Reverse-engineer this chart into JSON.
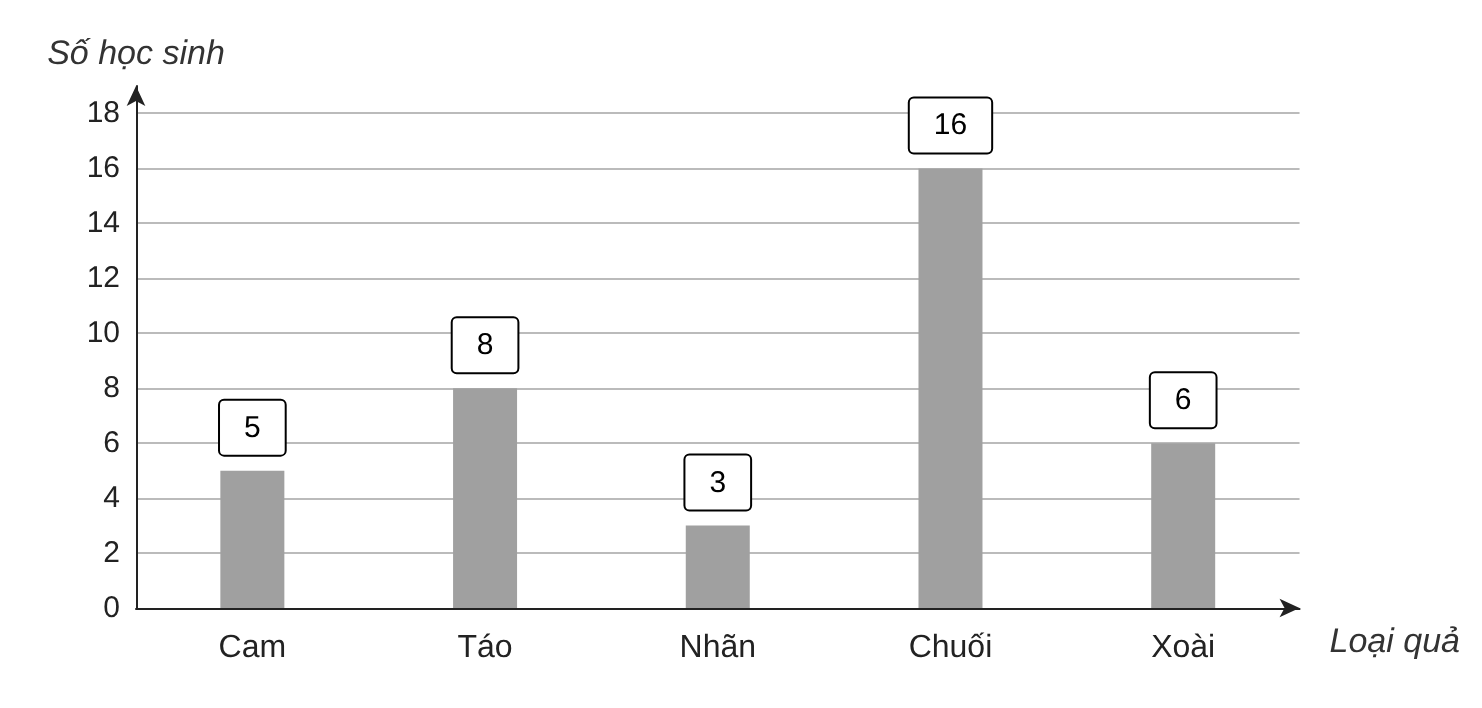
{
  "chart_data": {
    "type": "bar",
    "xlabel": "Loại quả",
    "ylabel": "Số học sinh",
    "categories": [
      "Cam",
      "Táo",
      "Nhãn",
      "Chuối",
      "Xoài"
    ],
    "values": [
      5,
      8,
      3,
      16,
      6
    ],
    "color": "#a0a0a0",
    "ylim": [
      0,
      19
    ],
    "yticks": [
      0,
      2,
      4,
      6,
      8,
      10,
      12,
      14,
      16,
      18
    ],
    "grid": "y",
    "data_labels": true
  }
}
